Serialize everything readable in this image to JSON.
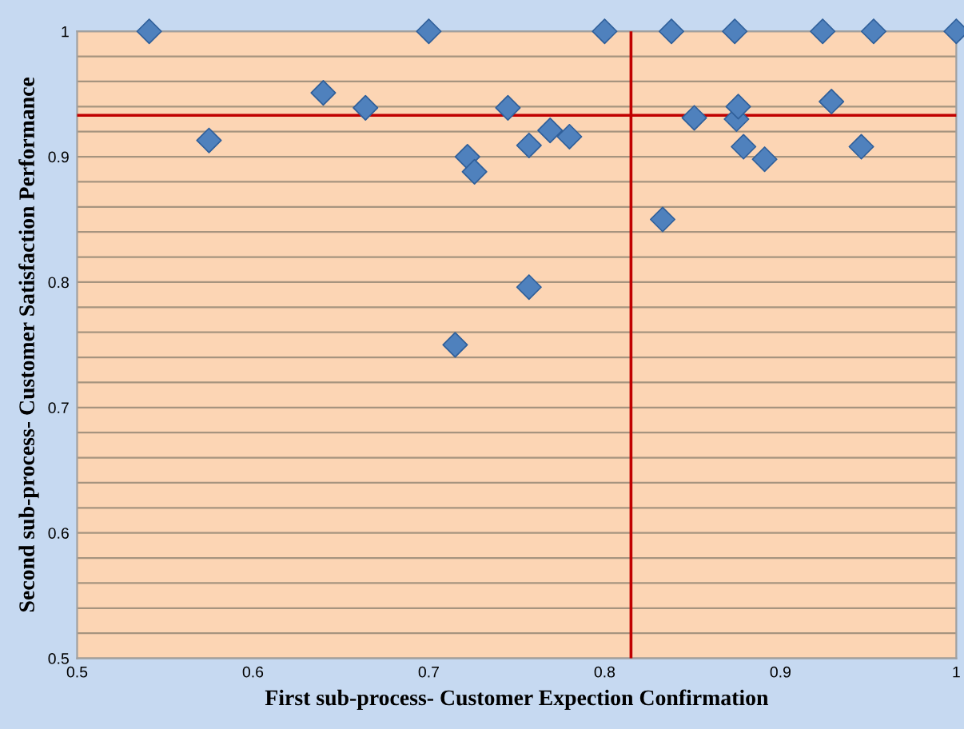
{
  "chart_data": {
    "type": "scatter",
    "xlabel": "First sub-process- Customer Expection Confirmation",
    "ylabel": "Second sub-process- Customer Satisfaction Performance",
    "series": [
      {
        "color": "#4f81bd",
        "x": [
          0.541,
          0.575,
          0.64,
          0.664,
          0.7,
          0.722,
          0.726,
          0.715,
          0.745,
          0.757,
          0.769,
          0.78,
          0.757,
          0.8,
          0.838,
          0.833,
          0.851,
          0.874,
          0.875,
          0.876,
          0.879,
          0.891,
          0.924,
          0.929,
          0.953,
          0.946,
          1.0
        ],
        "values": [
          1.0,
          0.913,
          0.951,
          0.939,
          1.0,
          0.9,
          0.888,
          0.75,
          0.939,
          0.909,
          0.921,
          0.916,
          0.796,
          1.0,
          1.0,
          0.85,
          0.931,
          1.0,
          0.93,
          0.94,
          0.908,
          0.898,
          1.0,
          0.944,
          1.0,
          0.908,
          1.0
        ]
      }
    ],
    "marker": "diamond",
    "xlim": [
      0.5,
      1.0
    ],
    "ylim": [
      0.5,
      1.0
    ],
    "xticks": [
      0.5,
      0.6,
      0.7,
      0.8,
      0.9,
      {
        "value": 1.0,
        "label": "1"
      }
    ],
    "yticks": [
      0.5,
      {
        "value": 0.52,
        "label": null
      },
      {
        "value": 0.54,
        "label": null
      },
      {
        "value": 0.56,
        "label": null
      },
      {
        "value": 0.58,
        "label": null
      },
      0.6,
      {
        "value": 0.62,
        "label": null
      },
      {
        "value": 0.64,
        "label": null
      },
      {
        "value": 0.66,
        "label": null
      },
      {
        "value": 0.68,
        "label": null
      },
      0.7,
      {
        "value": 0.72,
        "label": null
      },
      {
        "value": 0.74,
        "label": null
      },
      {
        "value": 0.76,
        "label": null
      },
      {
        "value": 0.78,
        "label": null
      },
      0.8,
      {
        "value": 0.82,
        "label": null
      },
      {
        "value": 0.84,
        "label": null
      },
      {
        "value": 0.86,
        "label": null
      },
      {
        "value": 0.88,
        "label": null
      },
      0.9,
      {
        "value": 0.92,
        "label": null
      },
      {
        "value": 0.94,
        "label": null
      },
      {
        "value": 0.96,
        "label": null
      },
      {
        "value": 0.98,
        "label": null
      },
      {
        "value": 1.0,
        "label": "1"
      }
    ],
    "grid": "y",
    "ref_lines": [
      {
        "axis": "x",
        "value": 0.815,
        "color": "#c00000"
      },
      {
        "axis": "y",
        "value": 0.933,
        "color": "#c00000"
      }
    ]
  }
}
